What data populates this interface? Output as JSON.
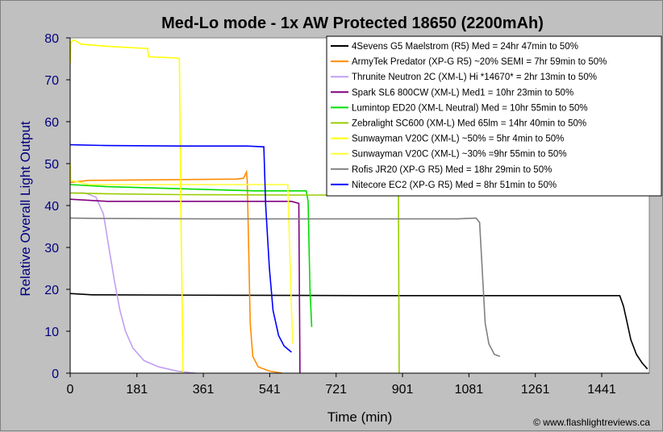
{
  "chart_data": {
    "type": "line",
    "title": "Med-Lo mode - 1x AW Protected 18650 (2200mAh)",
    "xlabel": "Time (min)",
    "ylabel": "Relative Overall Light Output",
    "xlim": [
      0,
      1570
    ],
    "ylim": [
      0,
      80
    ],
    "x_ticks": [
      "0",
      "181",
      "361",
      "541",
      "721",
      "901",
      "1081",
      "1261",
      "1441"
    ],
    "y_ticks": [
      "0",
      "10",
      "20",
      "30",
      "40",
      "50",
      "60",
      "70",
      "80"
    ],
    "grid": false,
    "legend_position": "top-right",
    "copyright": "© www.flashlightreviews.ca",
    "colors": {
      "plot_bg": "#ffffff",
      "outer_bg": "#c0c0c0",
      "title": "#000000",
      "axis_label": "#000080",
      "tick_y": "#000080"
    },
    "series": [
      {
        "name": "4Sevens G5 Maelstrom (R5) Med = 24hr 47min to 50%",
        "color": "#000000",
        "points": [
          [
            0,
            19
          ],
          [
            60,
            18.7
          ],
          [
            400,
            18.6
          ],
          [
            800,
            18.5
          ],
          [
            1200,
            18.5
          ],
          [
            1490,
            18.5
          ],
          [
            1500,
            16
          ],
          [
            1510,
            12
          ],
          [
            1520,
            8
          ],
          [
            1535,
            4.5
          ],
          [
            1550,
            2.5
          ],
          [
            1565,
            1
          ]
        ]
      },
      {
        "name": "ArmyTek Predator (XP-G R5) ~20% SEMI = 7hr 59min to 50%",
        "color": "#ff8c00",
        "points": [
          [
            0,
            45.5
          ],
          [
            50,
            46
          ],
          [
            300,
            46.2
          ],
          [
            450,
            46.3
          ],
          [
            470,
            46.5
          ],
          [
            478,
            48
          ],
          [
            480,
            46
          ],
          [
            484,
            30
          ],
          [
            488,
            12
          ],
          [
            495,
            4
          ],
          [
            510,
            1.5
          ],
          [
            540,
            0.5
          ],
          [
            575,
            0
          ]
        ]
      },
      {
        "name": "Thrunite Neutron 2C (XM-L) Hi *14670* = 2hr 13min to 50%",
        "color": "#c0a0f0",
        "points": [
          [
            0,
            43
          ],
          [
            40,
            43
          ],
          [
            70,
            42
          ],
          [
            90,
            38
          ],
          [
            105,
            30
          ],
          [
            120,
            22
          ],
          [
            135,
            15
          ],
          [
            150,
            10
          ],
          [
            170,
            6
          ],
          [
            200,
            3
          ],
          [
            240,
            1.5
          ],
          [
            290,
            0.5
          ],
          [
            340,
            0
          ]
        ]
      },
      {
        "name": "Spark SL6 800CW (XM-L) Med1 = 10hr 23min to 50%",
        "color": "#800080",
        "points": [
          [
            0,
            41.5
          ],
          [
            100,
            41
          ],
          [
            300,
            41
          ],
          [
            500,
            41
          ],
          [
            600,
            41
          ],
          [
            620,
            40.5
          ],
          [
            623,
            0
          ]
        ]
      },
      {
        "name": "Lumintop ED20 (XM-L Neutral) Med = 10hr 55min to 50%",
        "color": "#00dd00",
        "points": [
          [
            0,
            45
          ],
          [
            100,
            44.5
          ],
          [
            300,
            44
          ],
          [
            500,
            43.5
          ],
          [
            640,
            43.5
          ],
          [
            645,
            41
          ],
          [
            650,
            20
          ],
          [
            655,
            11
          ]
        ]
      },
      {
        "name": "Zebralight SC600 (XM-L) Med 65lm = 14hr 40min to 50%",
        "color": "#99cc00",
        "points": [
          [
            0,
            43
          ],
          [
            100,
            42.8
          ],
          [
            300,
            42.6
          ],
          [
            600,
            42.5
          ],
          [
            800,
            42.5
          ],
          [
            890,
            42.5
          ],
          [
            892,
            0
          ]
        ]
      },
      {
        "name": "Sunwayman V20C (XM-L) ~50% = 5hr 4min to 50%",
        "color": "#ffff00",
        "points": [
          [
            0,
            74
          ],
          [
            2,
            79
          ],
          [
            10,
            79.5
          ],
          [
            30,
            78.5
          ],
          [
            100,
            78
          ],
          [
            200,
            77.5
          ],
          [
            210,
            77.5
          ],
          [
            212,
            75.5
          ],
          [
            290,
            75.2
          ],
          [
            296,
            75
          ],
          [
            300,
            40
          ],
          [
            303,
            20
          ],
          [
            306,
            0
          ]
        ]
      },
      {
        "name": "Sunwayman V20C (XM-L) ~30% =9hr 55min to 50%",
        "color": "#ffff33",
        "points": [
          [
            0,
            50
          ],
          [
            2,
            46
          ],
          [
            50,
            45
          ],
          [
            300,
            45
          ],
          [
            500,
            45
          ],
          [
            590,
            45
          ],
          [
            595,
            30
          ],
          [
            600,
            15
          ],
          [
            604,
            7
          ]
        ]
      },
      {
        "name": "Rofis JR20 (XP-G R5) Med = 18hr 29min to 50%",
        "color": "#808080",
        "points": [
          [
            0,
            37
          ],
          [
            100,
            36.9
          ],
          [
            400,
            36.8
          ],
          [
            800,
            36.8
          ],
          [
            1050,
            36.8
          ],
          [
            1100,
            37
          ],
          [
            1110,
            36
          ],
          [
            1117,
            25
          ],
          [
            1125,
            12
          ],
          [
            1135,
            7
          ],
          [
            1150,
            4.5
          ],
          [
            1165,
            4
          ]
        ]
      },
      {
        "name": "Nitecore EC2 (XP-G R5) Med = 8hr 51min to 50%",
        "color": "#0000ff",
        "points": [
          [
            0,
            54.5
          ],
          [
            100,
            54.3
          ],
          [
            300,
            54.2
          ],
          [
            480,
            54.2
          ],
          [
            525,
            54
          ],
          [
            530,
            40
          ],
          [
            540,
            25
          ],
          [
            550,
            15
          ],
          [
            565,
            9
          ],
          [
            580,
            6.5
          ],
          [
            600,
            5
          ]
        ]
      }
    ]
  }
}
